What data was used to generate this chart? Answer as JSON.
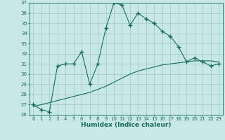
{
  "xlabel": "Humidex (Indice chaleur)",
  "bg_color": "#c8e8e8",
  "line_color": "#1a6b5a",
  "grid_color": "#a0c8c8",
  "xlim": [
    -0.5,
    23.5
  ],
  "ylim": [
    26,
    37
  ],
  "xticks": [
    0,
    1,
    2,
    3,
    4,
    5,
    6,
    7,
    8,
    9,
    10,
    11,
    12,
    13,
    14,
    15,
    16,
    17,
    18,
    19,
    20,
    21,
    22,
    23
  ],
  "yticks": [
    26,
    27,
    28,
    29,
    30,
    31,
    32,
    33,
    34,
    35,
    36,
    37
  ],
  "series1_x": [
    0,
    1,
    2,
    3,
    4,
    5,
    6,
    7,
    8,
    9,
    10,
    11,
    12,
    13,
    14,
    15,
    16,
    17,
    18,
    19,
    20,
    21,
    22,
    23
  ],
  "series1_y": [
    27.0,
    26.5,
    26.3,
    30.8,
    31.0,
    31.0,
    32.2,
    29.0,
    31.0,
    34.5,
    37.0,
    36.8,
    34.8,
    36.0,
    35.4,
    35.0,
    34.2,
    33.7,
    32.7,
    31.2,
    31.6,
    31.2,
    30.8,
    31.0
  ],
  "series2_x": [
    0,
    1,
    2,
    3,
    4,
    5,
    6,
    7,
    8,
    9,
    10,
    11,
    12,
    13,
    14,
    15,
    16,
    17,
    18,
    19,
    20,
    21,
    22,
    23
  ],
  "series2_y": [
    26.8,
    27.0,
    27.2,
    27.4,
    27.6,
    27.8,
    28.0,
    28.2,
    28.5,
    28.8,
    29.2,
    29.6,
    30.0,
    30.3,
    30.5,
    30.7,
    30.9,
    31.0,
    31.1,
    31.2,
    31.3,
    31.3,
    31.3,
    31.2
  ],
  "tick_fontsize": 5.0,
  "xlabel_fontsize": 6.5,
  "marker_size": 4.0,
  "linewidth": 0.8
}
